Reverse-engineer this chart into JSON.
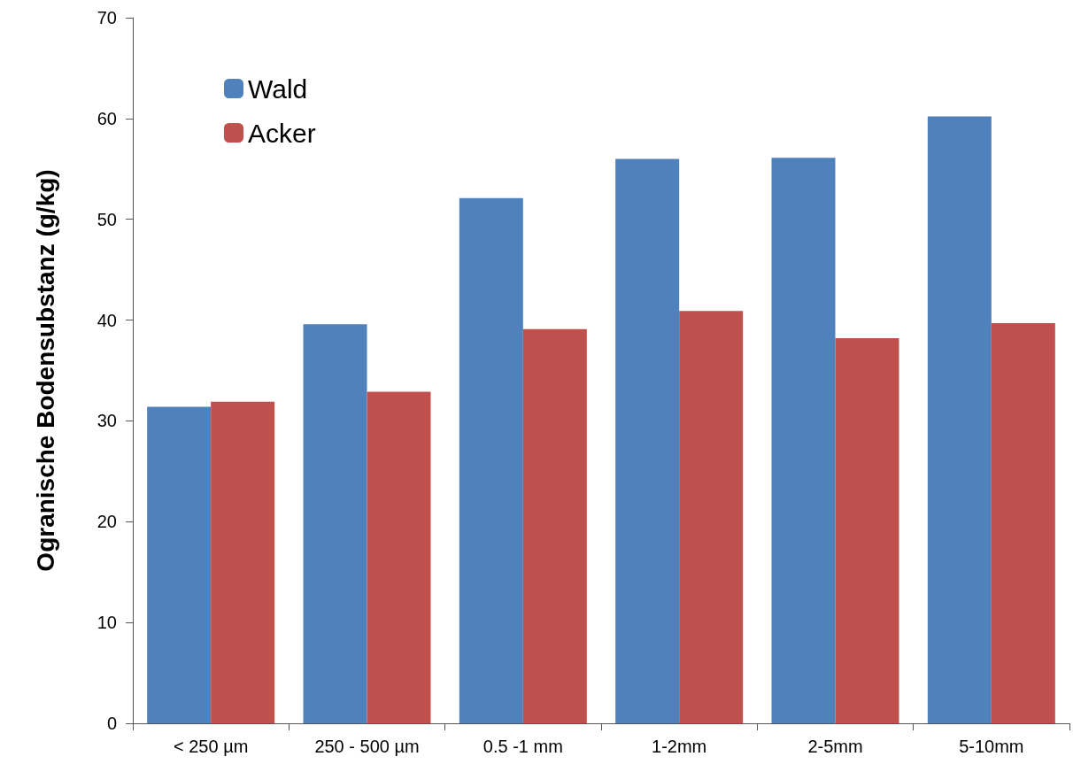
{
  "chart_data": {
    "type": "bar",
    "ylabel": "Ogranische Bodensubstanz (g/kg)",
    "categories": [
      "< 250 µm",
      "250 - 500 µm",
      "0.5 -1 mm",
      "1-2mm",
      "2-5mm",
      "5-10mm"
    ],
    "series": [
      {
        "name": "Wald",
        "color": "#4f81bd",
        "values": [
          31.4,
          39.6,
          52.1,
          56.0,
          56.1,
          60.2
        ]
      },
      {
        "name": "Acker",
        "color": "#c0504d",
        "values": [
          31.9,
          32.9,
          39.1,
          40.9,
          38.2,
          39.7
        ]
      }
    ],
    "ylim": [
      0,
      70
    ],
    "yticks": [
      0,
      10,
      20,
      30,
      40,
      50,
      60,
      70
    ],
    "grid": false,
    "legend": "top left"
  }
}
